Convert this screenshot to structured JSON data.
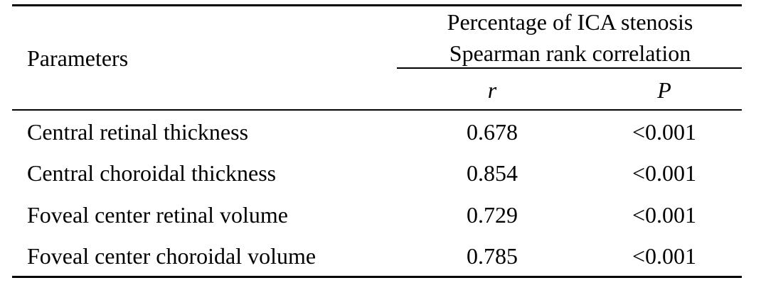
{
  "table": {
    "header": {
      "param_label": "Parameters",
      "group_line1": "Percentage of ICA stenosis",
      "group_line2": "Spearman rank correlation",
      "col_r": "r",
      "col_p": "P"
    },
    "rows": [
      {
        "param": "Central retinal thickness",
        "r": "0.678",
        "p": "<0.001"
      },
      {
        "param": "Central choroidal thickness",
        "r": "0.854",
        "p": "<0.001"
      },
      {
        "param": "Foveal center retinal volume",
        "r": "0.729",
        "p": "<0.001"
      },
      {
        "param": "Foveal center choroidal volume",
        "r": "0.785",
        "p": "<0.001"
      }
    ]
  }
}
